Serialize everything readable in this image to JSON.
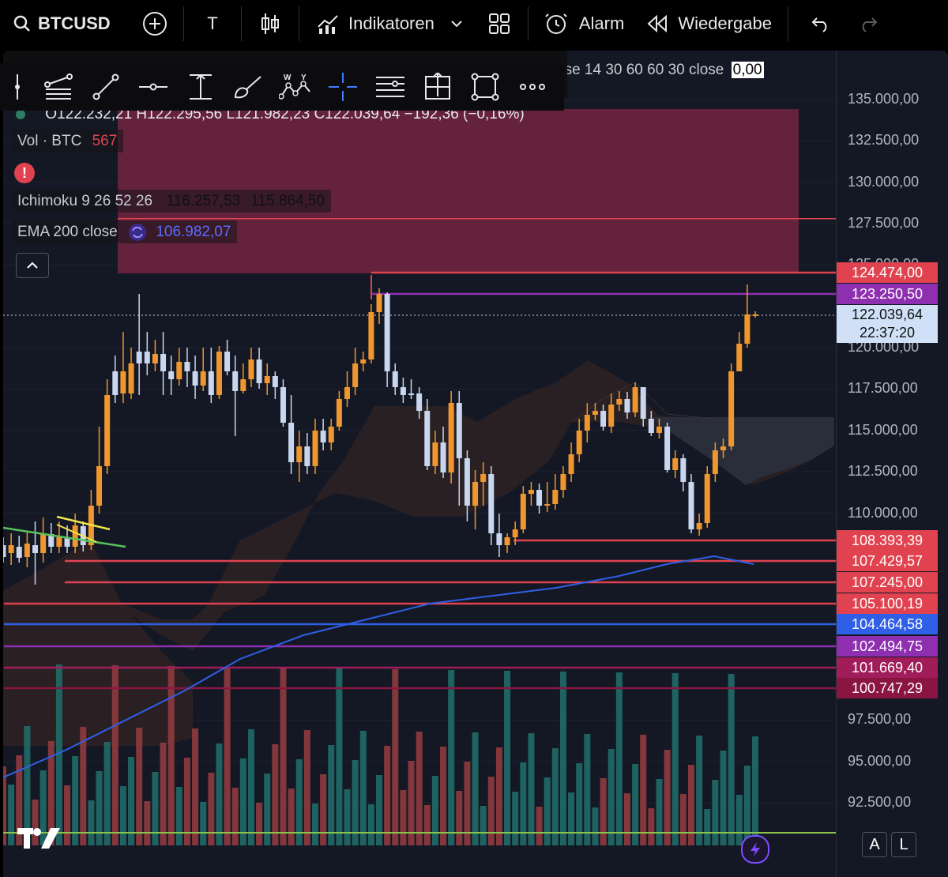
{
  "header": {
    "symbol": "BTCUSD",
    "text_tool": "T",
    "indicators_label": "Indikatoren",
    "alarm_label": "Alarm",
    "replay_label": "Wiedergabe"
  },
  "legend": {
    "ohlc": "O122.232,21  H122.295,56  L121.982,23  C122.039,64  −192,36 (−0,16%)",
    "partial_indicator": "ose 14 30 60 60 30 close",
    "partial_value": "0,00",
    "volume_label": "Vol · BTC",
    "volume_value": "567",
    "ichimoku_label": "Ichimoku 9 26 52 26",
    "ichimoku_value1": "116.257,53",
    "ichimoku_value2": "115.864,50",
    "ema_label": "EMA 200 close",
    "ema_value": "106.982,07"
  },
  "axis": {
    "ticks": [
      "135.000,00",
      "132.500,00",
      "130.000,00",
      "127.500,00",
      "120.000,00",
      "117.500,00",
      "115.000,00",
      "112.500,00",
      "110.000,00",
      "97.500,00",
      "95.000,00",
      "92.500,00"
    ],
    "partial_tick": "125.000,00"
  },
  "price_labels": [
    {
      "value": "124.474,00",
      "color": "#e0434f"
    },
    {
      "value": "123.250,50",
      "color": "#8e2fb0"
    },
    {
      "value": "108.393,39",
      "color": "#e0434f"
    },
    {
      "value": "107.429,57",
      "color": "#e0434f"
    },
    {
      "value": "107.245,00",
      "color": "#e0434f"
    },
    {
      "value": "105.100,19",
      "color": "#e0434f"
    },
    {
      "value": "104.464,58",
      "color": "#2f5fe6"
    },
    {
      "value": "102.494,75",
      "color": "#8e2fb0"
    },
    {
      "value": "101.669,40",
      "color": "#a01d5a"
    },
    {
      "value": "100.747,29",
      "color": "#8a1542"
    }
  ],
  "last_price": {
    "value": "122.039,64",
    "countdown": "22:37:20",
    "bg": "#cfe0f7"
  },
  "buttons": {
    "auto": "A",
    "log": "L"
  },
  "colors": {
    "up": "#f0962e",
    "down": "#c8d6f0",
    "vol_up": "#1f6b68",
    "vol_down": "#8f3b3f",
    "zone": "#6b2440"
  }
}
